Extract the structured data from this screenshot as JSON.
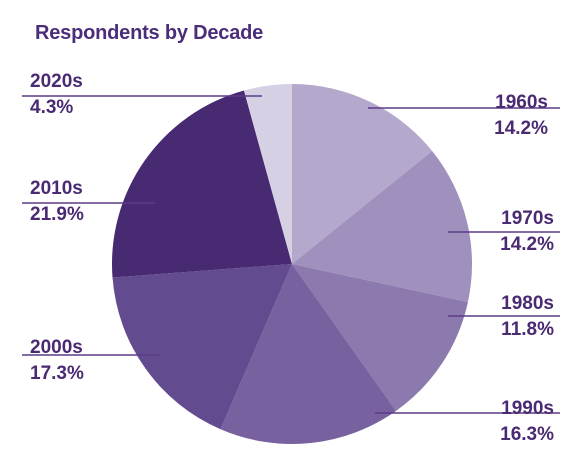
{
  "chart_data": {
    "type": "pie",
    "title": "Respondents by Decade",
    "slices": [
      {
        "label": "1960s",
        "value": 14.2,
        "display": "14.2%",
        "color": "#b4a8cc",
        "side": "right"
      },
      {
        "label": "1970s",
        "value": 14.2,
        "display": "14.2%",
        "color": "#a090bd",
        "side": "right"
      },
      {
        "label": "1980s",
        "value": 11.8,
        "display": "11.8%",
        "color": "#8c79ae",
        "side": "right"
      },
      {
        "label": "1990s",
        "value": 16.3,
        "display": "16.3%",
        "color": "#77619f",
        "side": "right"
      },
      {
        "label": "2000s",
        "value": 17.3,
        "display": "17.3%",
        "color": "#634b8f",
        "side": "left"
      },
      {
        "label": "2010s",
        "value": 21.9,
        "display": "21.9%",
        "color": "#472a72",
        "side": "left"
      },
      {
        "label": "2020s",
        "value": 4.3,
        "display": "4.3%",
        "color": "#d5d0e3",
        "side": "left"
      }
    ],
    "start_angle_deg": 0,
    "direction": "clockwise",
    "label_color": "#4a2a72",
    "leader_color": "#5a3c86"
  }
}
